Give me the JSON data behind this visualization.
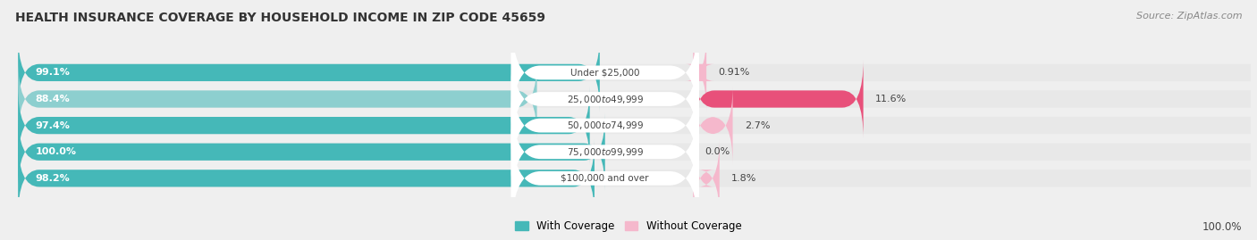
{
  "title": "HEALTH INSURANCE COVERAGE BY HOUSEHOLD INCOME IN ZIP CODE 45659",
  "source": "Source: ZipAtlas.com",
  "categories": [
    "Under $25,000",
    "$25,000 to $49,999",
    "$50,000 to $74,999",
    "$75,000 to $99,999",
    "$100,000 and over"
  ],
  "with_coverage": [
    99.1,
    88.4,
    97.4,
    100.0,
    98.2
  ],
  "without_coverage": [
    0.91,
    11.6,
    2.7,
    0.0,
    1.8
  ],
  "with_coverage_labels": [
    "99.1%",
    "88.4%",
    "97.4%",
    "100.0%",
    "98.2%"
  ],
  "without_coverage_labels": [
    "0.91%",
    "11.6%",
    "2.7%",
    "0.0%",
    "1.8%"
  ],
  "color_with_0": "#45b8b8",
  "color_with_1": "#8dcfcf",
  "color_with_2": "#45b8b8",
  "color_with_3": "#45b8b8",
  "color_with_4": "#45b8b8",
  "color_without_0": "#f5b8cc",
  "color_without_1": "#e8507a",
  "color_without_2": "#f5b8cc",
  "color_without_3": "#f5b8cc",
  "color_without_4": "#f5b8cc",
  "bg_color": "#efefef",
  "bar_bg_color": "#e0e0e0",
  "row_bg_color": "#e8e8e8",
  "legend_with": "With Coverage",
  "legend_without": "Without Coverage",
  "bottom_label": "100.0%",
  "label_mid": 0.5,
  "without_scale": 0.15,
  "title_fontsize": 10,
  "source_fontsize": 8
}
